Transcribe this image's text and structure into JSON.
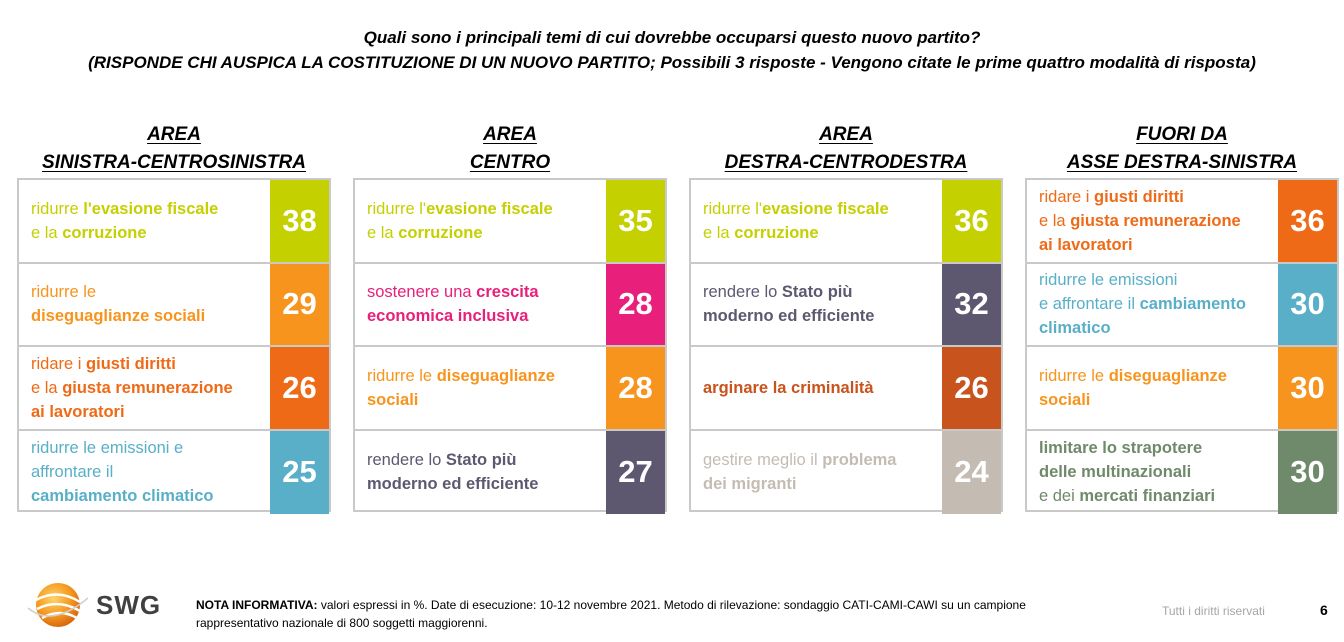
{
  "title": {
    "line1": "Quali sono i principali temi di cui dovrebbe occuparsi questo nuovo partito?",
    "line2": "(RISPONDE CHI AUSPICA LA COSTITUZIONE DI UN NUOVO PARTITO; Possibili 3 risposte - Vengono citate le prime quattro modalità di risposta)"
  },
  "chart_data": {
    "type": "table",
    "groups": [
      {
        "header": [
          "AREA",
          "SINISTRA-CENTROSINISTRA"
        ],
        "rows": [
          {
            "segments": [
              {
                "t": "ridurre ",
                "b": false
              },
              {
                "t": "l'evasione fiscale",
                "b": true
              },
              {
                "t": "\ne la ",
                "b": false
              },
              {
                "t": "corruzione",
                "b": true
              }
            ],
            "value": 38,
            "color": "#c5d000"
          },
          {
            "segments": [
              {
                "t": "ridurre le\n",
                "b": false
              },
              {
                "t": "diseguaglianze sociali",
                "b": true
              }
            ],
            "value": 29,
            "color": "#f7941d"
          },
          {
            "segments": [
              {
                "t": "ridare i ",
                "b": false
              },
              {
                "t": "giusti diritti",
                "b": true
              },
              {
                "t": "\ne la ",
                "b": false
              },
              {
                "t": "giusta remunerazione\nai lavoratori",
                "b": true
              }
            ],
            "value": 26,
            "color": "#ef6a17"
          },
          {
            "segments": [
              {
                "t": "ridurre le emissioni e\naffrontare il\n",
                "b": false
              },
              {
                "t": "cambiamento climatico",
                "b": true
              }
            ],
            "value": 25,
            "color": "#59afc8"
          }
        ]
      },
      {
        "header": [
          "AREA",
          "CENTRO"
        ],
        "rows": [
          {
            "segments": [
              {
                "t": "ridurre l'",
                "b": false
              },
              {
                "t": "evasione fiscale",
                "b": true
              },
              {
                "t": "\ne la ",
                "b": false
              },
              {
                "t": "corruzione",
                "b": true
              }
            ],
            "value": 35,
            "color": "#c5d000"
          },
          {
            "segments": [
              {
                "t": "sostenere una ",
                "b": false
              },
              {
                "t": "crescita\neconomica inclusiva",
                "b": true
              }
            ],
            "value": 28,
            "color": "#e8207b"
          },
          {
            "segments": [
              {
                "t": "ridurre le ",
                "b": false
              },
              {
                "t": "diseguaglianze\nsociali",
                "b": true
              }
            ],
            "value": 28,
            "color": "#f7941d"
          },
          {
            "segments": [
              {
                "t": "rendere lo ",
                "b": false
              },
              {
                "t": "Stato più\nmoderno ed efficiente",
                "b": true
              }
            ],
            "value": 27,
            "color": "#5d5870"
          }
        ]
      },
      {
        "header": [
          "AREA",
          "DESTRA-CENTRODESTRA"
        ],
        "rows": [
          {
            "segments": [
              {
                "t": "ridurre l'",
                "b": false
              },
              {
                "t": "evasione fiscale",
                "b": true
              },
              {
                "t": "\ne la ",
                "b": false
              },
              {
                "t": "corruzione",
                "b": true
              }
            ],
            "value": 36,
            "color": "#c5d000"
          },
          {
            "segments": [
              {
                "t": "rendere lo ",
                "b": false
              },
              {
                "t": "Stato più\nmoderno ed efficiente",
                "b": true
              }
            ],
            "value": 32,
            "color": "#5d5870"
          },
          {
            "segments": [
              {
                "t": "arginare la criminalità",
                "b": true
              }
            ],
            "value": 26,
            "color": "#c8531c"
          },
          {
            "segments": [
              {
                "t": "gestire meglio il ",
                "b": false
              },
              {
                "t": "problema\ndei migranti",
                "b": true
              }
            ],
            "value": 24,
            "color": "#c4bcb2"
          }
        ]
      },
      {
        "header": [
          "FUORI DA",
          "ASSE DESTRA-SINISTRA"
        ],
        "rows": [
          {
            "segments": [
              {
                "t": "ridare i ",
                "b": false
              },
              {
                "t": "giusti diritti",
                "b": true
              },
              {
                "t": "\ne la ",
                "b": false
              },
              {
                "t": "giusta remunerazione\nai lavoratori",
                "b": true
              }
            ],
            "value": 36,
            "color": "#ef6a17"
          },
          {
            "segments": [
              {
                "t": "ridurre le emissioni\ne affrontare il ",
                "b": false
              },
              {
                "t": "cambiamento\nclimatico",
                "b": true
              }
            ],
            "value": 30,
            "color": "#59afc8"
          },
          {
            "segments": [
              {
                "t": "ridurre le ",
                "b": false
              },
              {
                "t": "diseguaglianze\nsociali",
                "b": true
              }
            ],
            "value": 30,
            "color": "#f7941d"
          },
          {
            "segments": [
              {
                "t": "limitare lo strapotere\ndelle multinazionali",
                "b": true
              },
              {
                "t": "\ne dei ",
                "b": false
              },
              {
                "t": "mercati finanziari",
                "b": true
              }
            ],
            "value": 30,
            "color": "#6f8a6a"
          }
        ]
      }
    ]
  },
  "logo": {
    "text": "SWG"
  },
  "note": {
    "label": "NOTA INFORMATIVA:",
    "text": " valori espressi in %. Date di esecuzione: 10-12 novembre 2021. Metodo di rilevazione: sondaggio CATI-CAMI-CAWI su un campione rappresentativo nazionale di 800 soggetti maggiorenni."
  },
  "rights": "Tutti i diritti riservati",
  "page_number": "6"
}
